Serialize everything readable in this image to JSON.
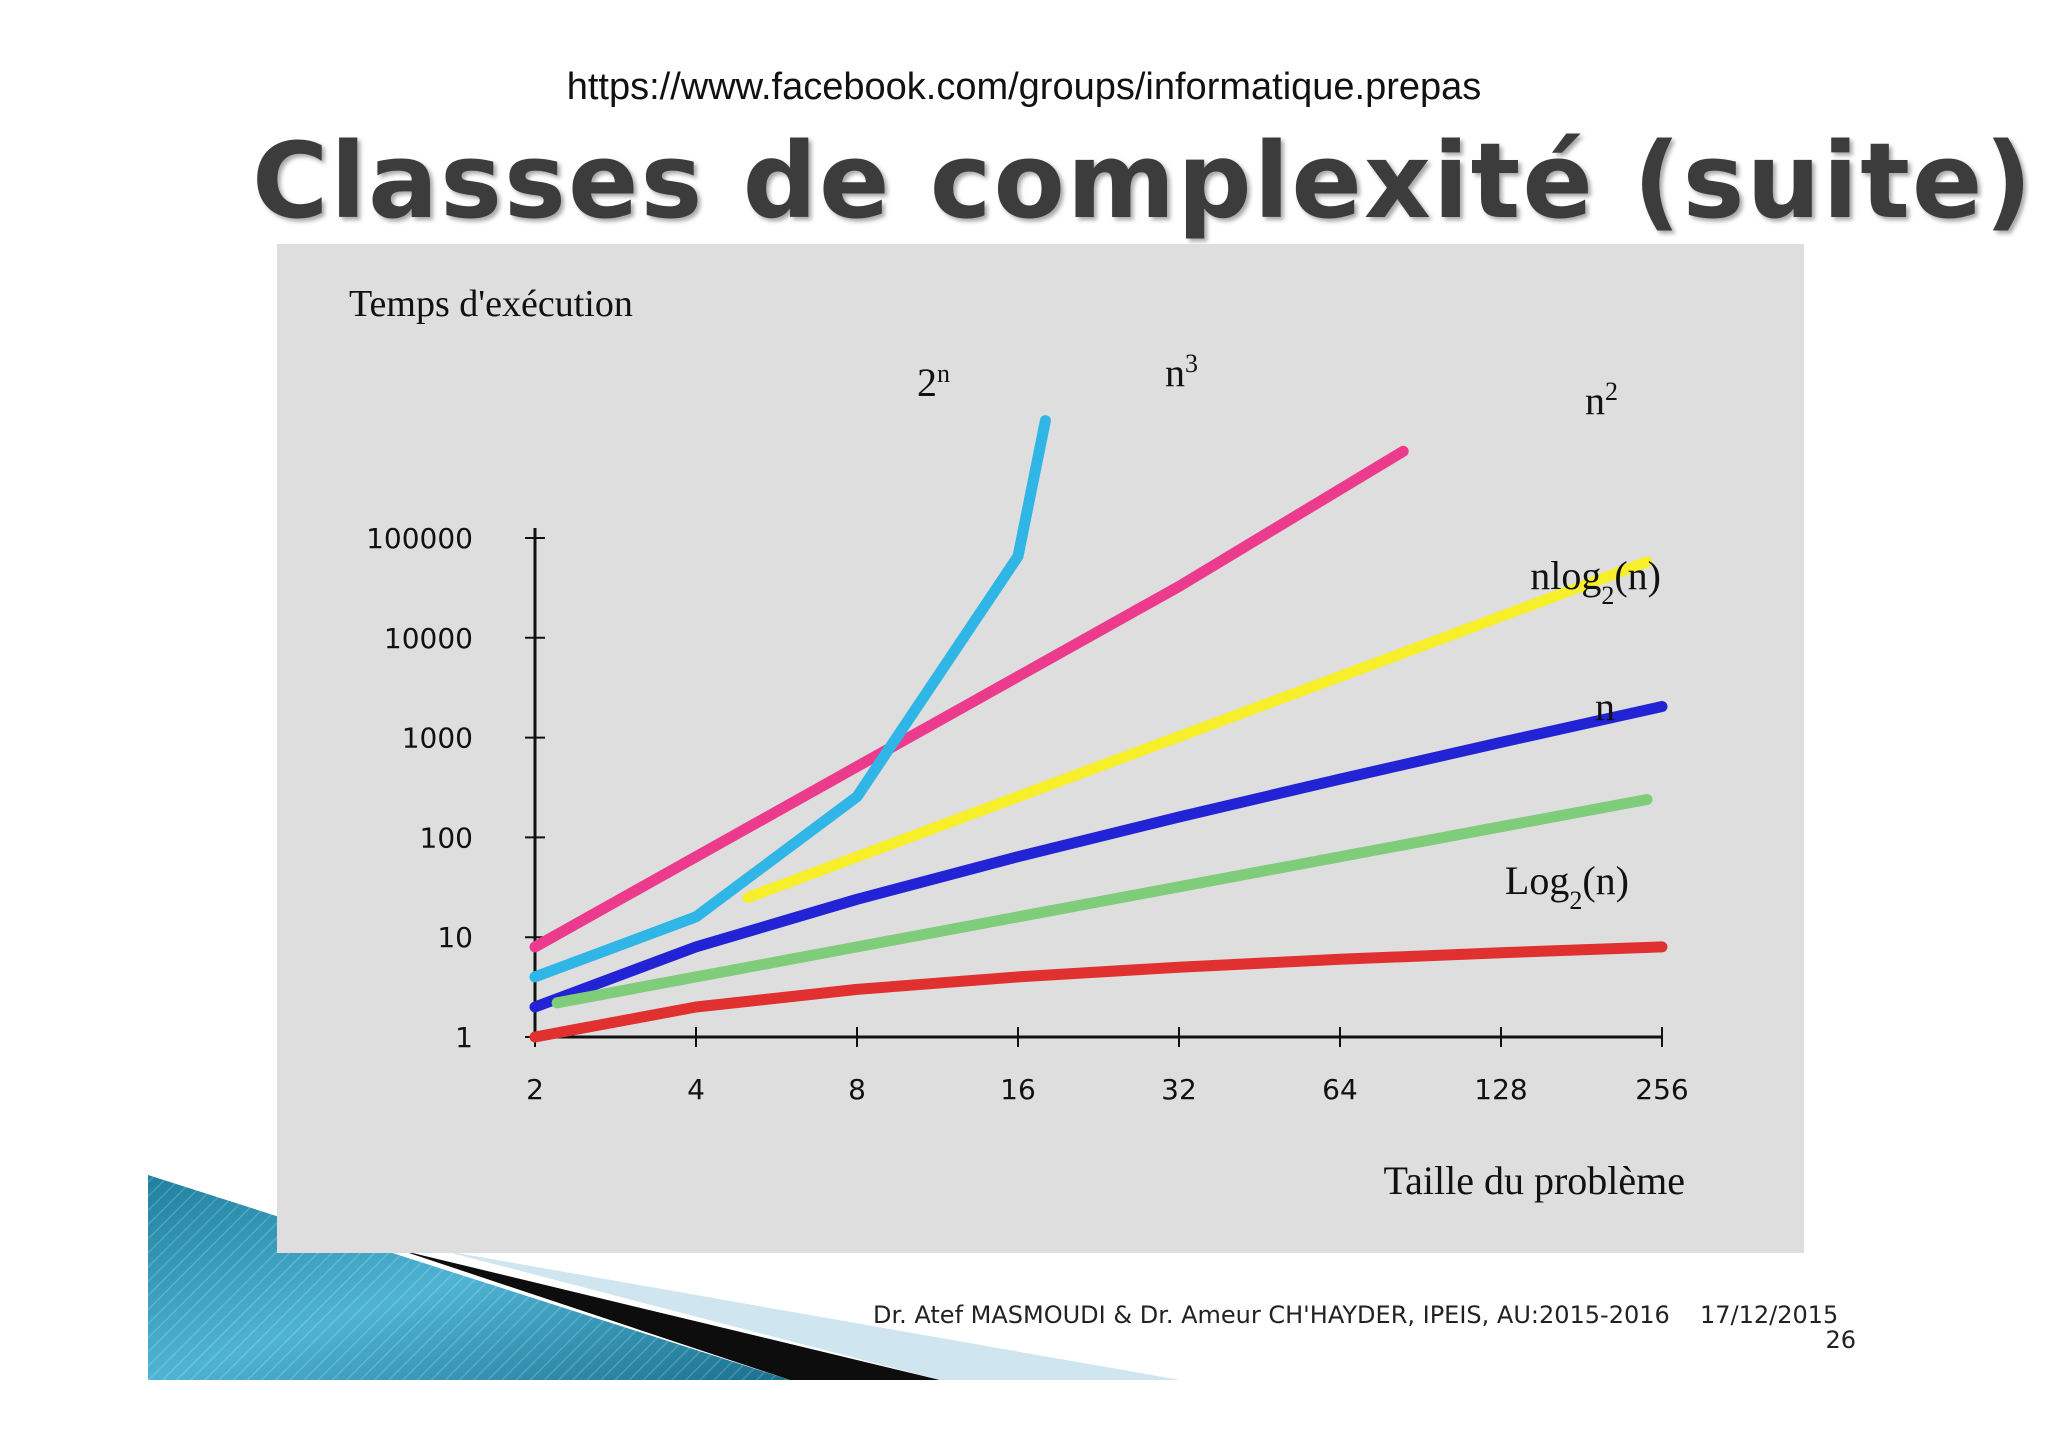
{
  "header": {
    "url": "https://www.facebook.com/groups/informatique.prepas",
    "title": "Classes de complexité (suite)"
  },
  "footer": {
    "authors": "Dr. Atef MASMOUDI & Dr. Ameur CH'HAYDER, IPEIS, AU:2015-2016",
    "date": "17/12/2015",
    "page": "26"
  },
  "colors": {
    "panel": "#dedede",
    "two_n": "#2fb6e6",
    "n3": "#ec3a8c",
    "n2": "#f6ef2a",
    "nlog2n": "#2323d6",
    "n": "#7fcc7a",
    "log2n": "#e03030"
  },
  "chart_data": {
    "type": "line",
    "ylabel": "Temps d'exécution",
    "xlabel": "Taille du problème",
    "x_scale": "log2",
    "y_scale": "log10",
    "x_ticks": [
      "2",
      "4",
      "8",
      "16",
      "32",
      "64",
      "128",
      "256"
    ],
    "y_ticks": [
      "1",
      "10",
      "100",
      "1000",
      "10000",
      "100000"
    ],
    "xlim": [
      2,
      256
    ],
    "ylim": [
      1,
      100000
    ],
    "grid": false,
    "series": [
      {
        "name": "2",
        "sup": "n",
        "sub": "",
        "suffix": "",
        "color": "#2fb6e6",
        "points": [
          [
            2,
            4
          ],
          [
            4,
            16
          ],
          [
            8,
            256
          ],
          [
            16,
            65536
          ],
          [
            18,
            1500000
          ]
        ]
      },
      {
        "name": "n",
        "sup": "3",
        "sub": "",
        "suffix": "",
        "color": "#ec3a8c",
        "points": [
          [
            2,
            8
          ],
          [
            8,
            512
          ],
          [
            16,
            4096
          ],
          [
            32,
            32768
          ],
          [
            84,
            740000
          ]
        ]
      },
      {
        "name": "n",
        "sup": "2",
        "sub": "",
        "suffix": "",
        "color": "#f6ef2a",
        "points": [
          [
            5,
            25
          ],
          [
            16,
            256
          ],
          [
            64,
            4096
          ],
          [
            240,
            57600
          ]
        ]
      },
      {
        "name": "nlog",
        "sup": "",
        "sub": "2",
        "suffix": "(n)",
        "color": "#2323d6",
        "points": [
          [
            2,
            2
          ],
          [
            4,
            8
          ],
          [
            8,
            24
          ],
          [
            16,
            64
          ],
          [
            32,
            160
          ],
          [
            64,
            384
          ],
          [
            128,
            896
          ],
          [
            256,
            2048
          ]
        ]
      },
      {
        "name": "n",
        "sup": "",
        "sub": "",
        "suffix": "",
        "color": "#7fcc7a",
        "points": [
          [
            2.2,
            2.2
          ],
          [
            8,
            8
          ],
          [
            32,
            32
          ],
          [
            128,
            128
          ],
          [
            240,
            240
          ]
        ]
      },
      {
        "name": "Log",
        "sup": "",
        "sub": "2",
        "suffix": "(n)",
        "color": "#e03030",
        "points": [
          [
            2,
            1
          ],
          [
            4,
            2
          ],
          [
            8,
            3
          ],
          [
            16,
            4
          ],
          [
            32,
            5
          ],
          [
            64,
            6
          ],
          [
            128,
            7
          ],
          [
            256,
            8
          ]
        ]
      }
    ]
  }
}
